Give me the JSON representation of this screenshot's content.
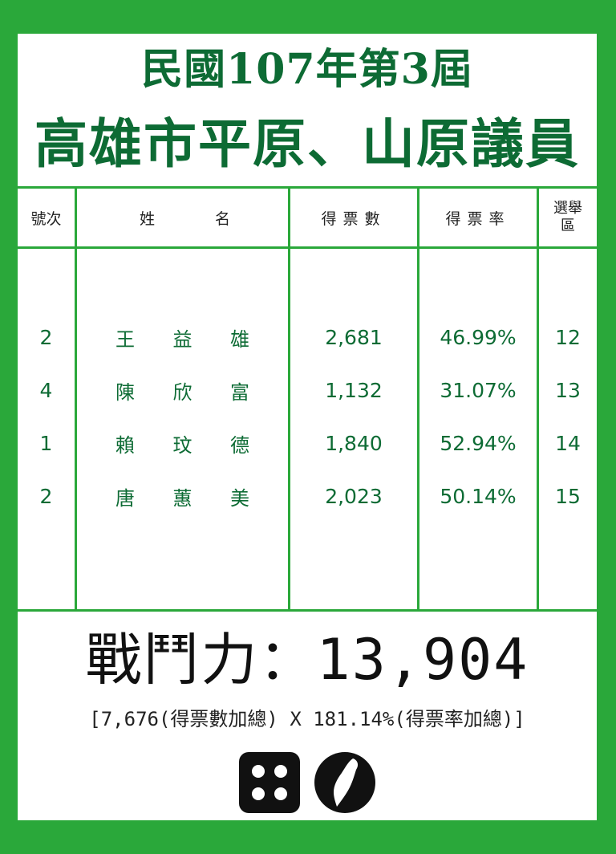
{
  "title_line1": "民國107年第3屆",
  "title_line2": "高雄市平原、山原議員",
  "table": {
    "headers": {
      "number": "號次",
      "name_a": "姓",
      "name_b": "名",
      "votes": "得票數",
      "rate": "得票率",
      "district_line1": "選舉",
      "district_line2": "區"
    },
    "rows": [
      {
        "number": "2",
        "name": [
          "王",
          "益",
          "雄"
        ],
        "votes": "2,681",
        "rate": "46.99%",
        "district": "12"
      },
      {
        "number": "4",
        "name": [
          "陳",
          "欣",
          "富"
        ],
        "votes": "1,132",
        "rate": "31.07%",
        "district": "13"
      },
      {
        "number": "1",
        "name": [
          "賴",
          "玟",
          "德"
        ],
        "votes": "1,840",
        "rate": "52.94%",
        "district": "14"
      },
      {
        "number": "2",
        "name": [
          "唐",
          "蕙",
          "美"
        ],
        "votes": "2,023",
        "rate": "50.14%",
        "district": "15"
      }
    ]
  },
  "power_text": "戰鬥力：13,904",
  "formula_text": "[7,676(得票數加總) X 181.14%(得票率加總)]",
  "icons": [
    "dice-icon",
    "taiwan-icon"
  ],
  "colors": {
    "frame": "#2aa83a",
    "accent": "#0d6b34"
  }
}
